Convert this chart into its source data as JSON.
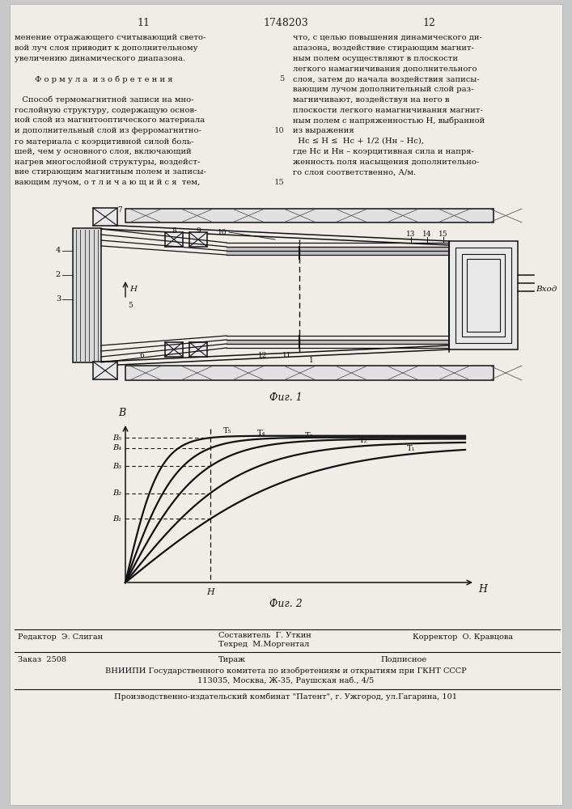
{
  "page_bg": "#f2f2f0",
  "header": {
    "left_num": "11",
    "center_num": "1748203",
    "right_num": "12"
  },
  "left_col_text": [
    "менение отражающего считывающий свето-",
    "вой луч слоя приводит к дополнительному",
    "увеличению динамического диапазона.",
    "",
    "        Ф о р м у л а  и з о б р е т е н и я",
    "",
    "   Способ термомагнитной записи на мно-",
    "гослойную структуру, содержащую основ-",
    "ной слой из магнитооптического материала",
    "и дополнительный слой из ферромагнитно-",
    "го материала с коэрцитивной силой боль-",
    "шей, чем у основного слоя, включающий",
    "нагрев многослойной структуры, воздейст-",
    "вие стирающим магнитным полем и записы-",
    "вающим лучом, о т л и ч а ю щ и й с я  тем,"
  ],
  "right_col_text": [
    "что, с целью повышения динамического ди-",
    "апазона, воздействие стирающим магнит-",
    "ным полем осуществляют в плоскости",
    "легкого намагничивания дополнительного",
    "слоя, затем до начала воздействия записы-",
    "вающим лучом дополнительный слой раз-",
    "магничивают, воздействуя на него в",
    "плоскости легкого намагничивания магнит-",
    "ным полем с напряженностью Н, выбранной",
    "из выражения",
    "  Hc ≤ H ≤  Hc + 1/2 (Hн – Hc),",
    "где Hc и Hн – коэрцитивная сила и напря-",
    "женность поля насыщения дополнительно-",
    "го слоя соответственно, А/м."
  ],
  "fig1_caption": "Фиг. 1",
  "fig2_caption": "Фиг. 2",
  "footer": {
    "editor": "Редактор  Э. Слиган",
    "composer_label": "Составитель  Г. Уткин",
    "techred": "Техред  М.Моргентал",
    "corrector": "Корректор  О. Кравцова",
    "order": "Заказ  2508",
    "tirazh": "Тираж",
    "podpisnoe": "Подписное",
    "vnipi_line": "ВНИИПИ Государственного комитета по изобретениям и открытиям при ГКНТ СССР",
    "address": "113035, Москва, Ж-35, Раушская наб., 4/5",
    "patent": "Производственно-издательский комбинат \"Патент\", г. Ужгород, ул.Гагарина, 101"
  }
}
